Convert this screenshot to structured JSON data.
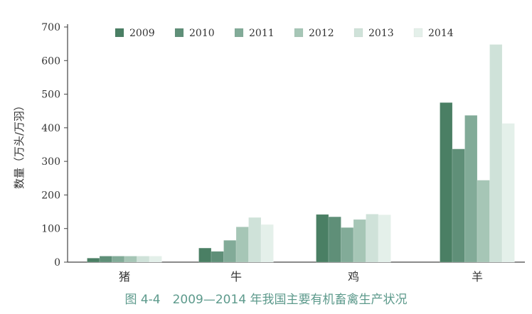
{
  "caption": "图 4-4　2009—2014 年我国主要有机畜禽生产状况",
  "chart_data": {
    "type": "bar",
    "title": "",
    "xlabel": "",
    "ylabel": "数量（万头/万羽）",
    "ylim": [
      0,
      700
    ],
    "yticks": [
      "0",
      "100",
      "200",
      "300",
      "400",
      "500",
      "600",
      "700"
    ],
    "grid": false,
    "legend_position": "top",
    "categories": [
      "猪",
      "牛",
      "鸡",
      "羊"
    ],
    "series": [
      {
        "name": "2009",
        "color": "#4a7f64",
        "values": [
          12,
          42,
          142,
          475
        ]
      },
      {
        "name": "2010",
        "color": "#5f8f78",
        "values": [
          18,
          32,
          135,
          337
        ]
      },
      {
        "name": "2011",
        "color": "#82ab98",
        "values": [
          18,
          65,
          103,
          437
        ]
      },
      {
        "name": "2012",
        "color": "#a6c6b6",
        "values": [
          18,
          105,
          127,
          244
        ]
      },
      {
        "name": "2013",
        "color": "#cfe2d9",
        "values": [
          18,
          133,
          143,
          648
        ]
      },
      {
        "name": "2014",
        "color": "#e4f0ea",
        "values": [
          18,
          112,
          141,
          413
        ]
      }
    ]
  }
}
